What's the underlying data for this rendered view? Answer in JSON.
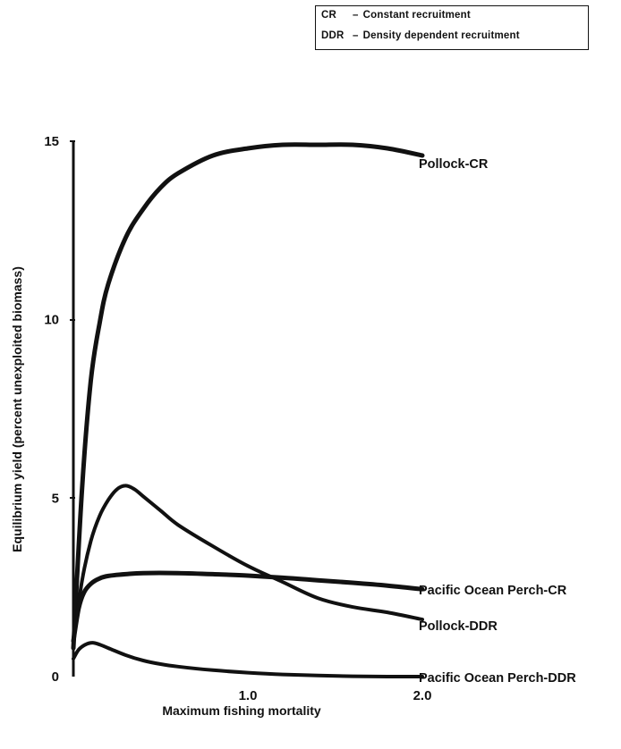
{
  "legend": {
    "items": [
      {
        "abbr": "CR",
        "text": "Constant recruitment"
      },
      {
        "abbr": "DDR",
        "text": "Density dependent recruitment"
      }
    ]
  },
  "chart_data": {
    "type": "line",
    "title": "",
    "xlabel": "Maximum fishing mortality",
    "ylabel": "Equilibrium yield (percent unexploited biomass)",
    "xlim": [
      0,
      2.0
    ],
    "ylim": [
      0,
      15
    ],
    "x_ticks": [
      {
        "value": 1.0,
        "label": "1.0"
      },
      {
        "value": 2.0,
        "label": "2.0"
      }
    ],
    "y_ticks": [
      {
        "value": 0,
        "label": "0"
      },
      {
        "value": 5,
        "label": "5"
      },
      {
        "value": 10,
        "label": "10"
      },
      {
        "value": 15,
        "label": "15"
      }
    ],
    "grid": false,
    "legend_position": "top-right",
    "series": [
      {
        "name": "Pollock-CR",
        "x": [
          0,
          0.05,
          0.1,
          0.15,
          0.2,
          0.3,
          0.4,
          0.5,
          0.6,
          0.8,
          1.0,
          1.2,
          1.4,
          1.6,
          1.8,
          2.0
        ],
        "y": [
          0.8,
          5.3,
          8.3,
          9.9,
          11.0,
          12.3,
          13.1,
          13.7,
          14.1,
          14.6,
          14.8,
          14.9,
          14.9,
          14.9,
          14.8,
          14.6
        ]
      },
      {
        "name": "Pollock-DDR",
        "x": [
          0,
          0.05,
          0.1,
          0.15,
          0.2,
          0.25,
          0.3,
          0.35,
          0.4,
          0.5,
          0.6,
          0.8,
          1.0,
          1.2,
          1.4,
          1.6,
          1.8,
          2.0
        ],
        "y": [
          1.0,
          2.7,
          3.8,
          4.5,
          4.95,
          5.25,
          5.35,
          5.25,
          5.05,
          4.65,
          4.25,
          3.65,
          3.1,
          2.65,
          2.2,
          1.95,
          1.8,
          1.6
        ]
      },
      {
        "name": "Pacific Ocean Perch-CR",
        "x": [
          0,
          0.03,
          0.06,
          0.1,
          0.15,
          0.2,
          0.3,
          0.4,
          0.6,
          0.8,
          1.0,
          1.2,
          1.4,
          1.6,
          1.8,
          2.0
        ],
        "y": [
          1.0,
          1.9,
          2.35,
          2.6,
          2.75,
          2.82,
          2.87,
          2.9,
          2.9,
          2.87,
          2.83,
          2.77,
          2.7,
          2.63,
          2.55,
          2.45
        ]
      },
      {
        "name": "Pacific Ocean Perch-DDR",
        "x": [
          0,
          0.03,
          0.07,
          0.11,
          0.15,
          0.2,
          0.3,
          0.4,
          0.5,
          0.6,
          0.8,
          1.0,
          1.2,
          1.4,
          1.6,
          1.8,
          2.0
        ],
        "y": [
          0.5,
          0.75,
          0.9,
          0.95,
          0.9,
          0.8,
          0.6,
          0.45,
          0.35,
          0.28,
          0.18,
          0.11,
          0.06,
          0.03,
          0.01,
          0.0,
          0.0
        ]
      }
    ]
  }
}
